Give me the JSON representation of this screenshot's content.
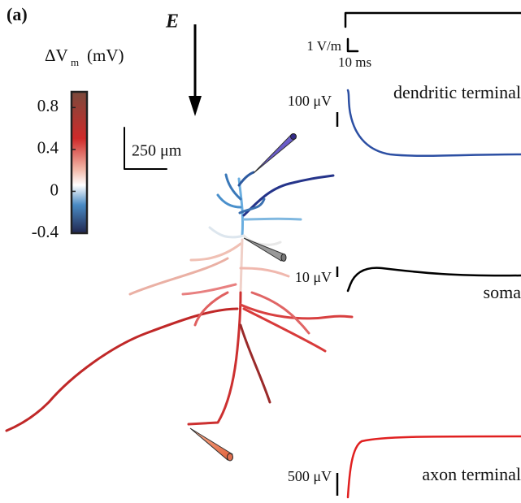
{
  "panel_label": "(a)",
  "field_label": "E",
  "colorbar": {
    "symbol": "ΔV",
    "subscript": "m",
    "unit": "(mV)",
    "ticks": [
      0.8,
      0.4,
      0,
      -0.4
    ],
    "lim": [
      -0.4,
      0.95
    ]
  },
  "scale_bar": "250 μm",
  "stimulus": {
    "amplitude_label": "1 V/m",
    "time_label": "10 ms"
  },
  "traces": [
    {
      "name": "dendritic terminal",
      "scale": "100 μV"
    },
    {
      "name": "soma",
      "scale": "10 μV"
    },
    {
      "name": "axon terminal",
      "scale": "500 μV"
    }
  ]
}
